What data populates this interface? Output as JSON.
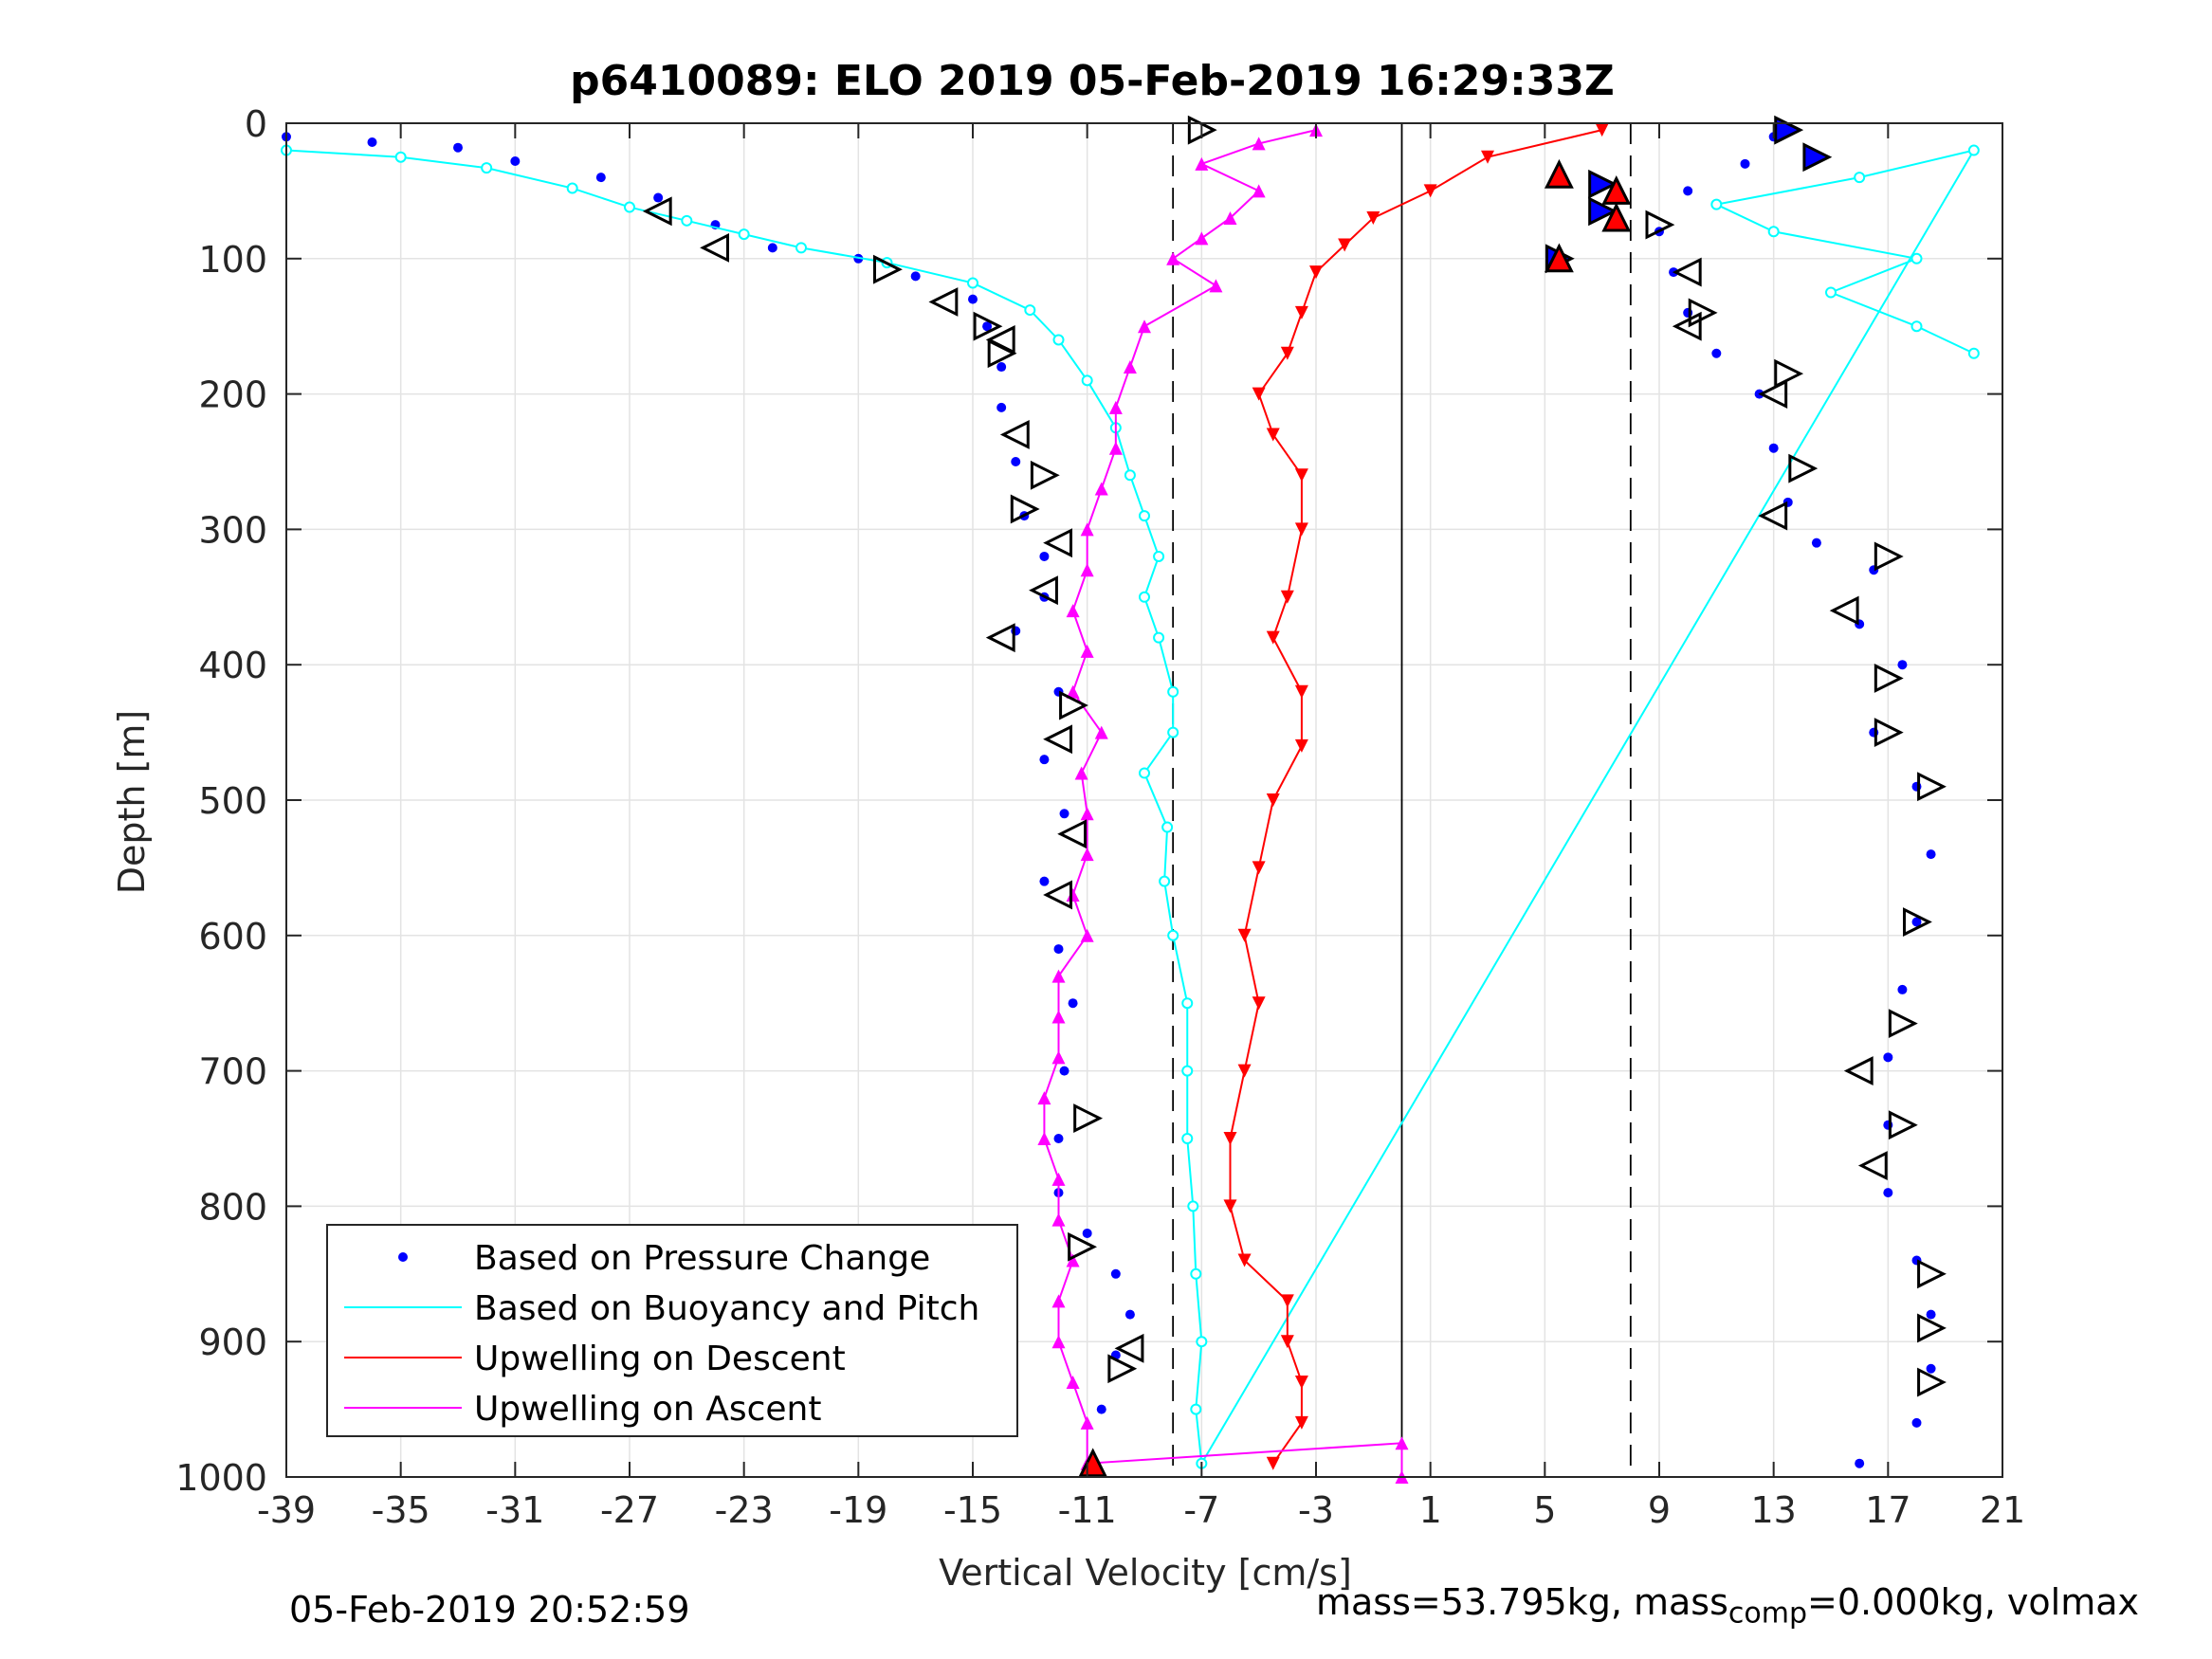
{
  "chart_data": {
    "type": "scatter",
    "title": "p6410089: ELO 2019 05-Feb-2019 16:29:33Z",
    "xlabel": "Vertical Velocity [cm/s]",
    "ylabel": "Depth [m]",
    "xlim": [
      -39,
      21
    ],
    "ylim": [
      0,
      1000
    ],
    "y_reversed": true,
    "grid": true,
    "xticks": [
      -39,
      -35,
      -31,
      -27,
      -23,
      -19,
      -15,
      -11,
      -7,
      -3,
      1,
      5,
      9,
      13,
      17,
      21
    ],
    "yticks": [
      0,
      100,
      200,
      300,
      400,
      500,
      600,
      700,
      800,
      900,
      1000
    ],
    "reference_lines": {
      "solid_x": 0,
      "dashed_x": [
        -8,
        8
      ]
    },
    "legend_position": "bottom-left",
    "colors": {
      "pressure": "#0000ff",
      "buoyancy": "#00ffff",
      "descent": "#ff0000",
      "ascent": "#ff00ff",
      "text": "#262626",
      "grid": "#e3e3e3"
    },
    "series": [
      {
        "name": "Based on Pressure Change",
        "style": "dots",
        "color": "#0000ff",
        "points": [
          [
            -39,
            10
          ],
          [
            -36,
            14
          ],
          [
            -33,
            18
          ],
          [
            -31,
            28
          ],
          [
            -28,
            40
          ],
          [
            -26,
            55
          ],
          [
            -24,
            75
          ],
          [
            -22,
            92
          ],
          [
            -19,
            100
          ],
          [
            -17,
            113
          ],
          [
            -15,
            130
          ],
          [
            -14.5,
            150
          ],
          [
            -14,
            180
          ],
          [
            -14,
            210
          ],
          [
            -13.5,
            250
          ],
          [
            -13.2,
            290
          ],
          [
            -12.5,
            320
          ],
          [
            -12.5,
            350
          ],
          [
            -13.5,
            375
          ],
          [
            -12,
            420
          ],
          [
            -12.5,
            470
          ],
          [
            -11.8,
            510
          ],
          [
            -12.5,
            560
          ],
          [
            -12,
            610
          ],
          [
            -11.5,
            650
          ],
          [
            -11.8,
            700
          ],
          [
            -12,
            750
          ],
          [
            -12,
            790
          ],
          [
            -11,
            820
          ],
          [
            -10,
            850
          ],
          [
            -9.5,
            880
          ],
          [
            -10,
            910
          ],
          [
            -10.5,
            950
          ],
          [
            -10.8,
            990
          ],
          [
            13,
            10
          ],
          [
            12,
            30
          ],
          [
            10,
            50
          ],
          [
            9,
            80
          ],
          [
            9.5,
            110
          ],
          [
            10,
            140
          ],
          [
            11,
            170
          ],
          [
            12.5,
            200
          ],
          [
            13,
            240
          ],
          [
            13.5,
            280
          ],
          [
            14.5,
            310
          ],
          [
            16.5,
            330
          ],
          [
            16,
            370
          ],
          [
            17.5,
            400
          ],
          [
            16.5,
            450
          ],
          [
            18,
            490
          ],
          [
            18.5,
            540
          ],
          [
            18,
            590
          ],
          [
            17.5,
            640
          ],
          [
            17,
            690
          ],
          [
            17,
            740
          ],
          [
            17,
            790
          ],
          [
            18,
            840
          ],
          [
            18.5,
            880
          ],
          [
            18.5,
            920
          ],
          [
            18,
            960
          ],
          [
            16,
            990
          ]
        ]
      },
      {
        "name": "Based on Buoyancy and Pitch",
        "style": "line-markers",
        "color": "#00ffff",
        "points": [
          [
            -39,
            20
          ],
          [
            -35,
            25
          ],
          [
            -32,
            33
          ],
          [
            -29,
            48
          ],
          [
            -27,
            62
          ],
          [
            -25,
            72
          ],
          [
            -23,
            82
          ],
          [
            -21,
            92
          ],
          [
            -18,
            103
          ],
          [
            -15,
            118
          ],
          [
            -13,
            138
          ],
          [
            -12,
            160
          ],
          [
            -11,
            190
          ],
          [
            -10,
            225
          ],
          [
            -9.5,
            260
          ],
          [
            -9,
            290
          ],
          [
            -8.5,
            320
          ],
          [
            -9,
            350
          ],
          [
            -8.5,
            380
          ],
          [
            -8,
            420
          ],
          [
            -8,
            450
          ],
          [
            -9,
            480
          ],
          [
            -8.2,
            520
          ],
          [
            -8.3,
            560
          ],
          [
            -8,
            600
          ],
          [
            -7.5,
            650
          ],
          [
            -7.5,
            700
          ],
          [
            -7.5,
            750
          ],
          [
            -7.3,
            800
          ],
          [
            -7.2,
            850
          ],
          [
            -7,
            900
          ],
          [
            -7.2,
            950
          ],
          [
            -7,
            990
          ],
          [
            20,
            20
          ],
          [
            16,
            40
          ],
          [
            11,
            60
          ],
          [
            13,
            80
          ],
          [
            18,
            100
          ],
          [
            15,
            125
          ],
          [
            18,
            150
          ],
          [
            20,
            170
          ]
        ]
      },
      {
        "name": "Upwelling on Descent",
        "style": "line-markers",
        "color": "#ff0000",
        "points": [
          [
            7,
            5
          ],
          [
            3,
            25
          ],
          [
            1,
            50
          ],
          [
            -1,
            70
          ],
          [
            -2,
            90
          ],
          [
            -3,
            110
          ],
          [
            -3.5,
            140
          ],
          [
            -4,
            170
          ],
          [
            -5,
            200
          ],
          [
            -4.5,
            230
          ],
          [
            -3.5,
            260
          ],
          [
            -3.5,
            300
          ],
          [
            -4,
            350
          ],
          [
            -4.5,
            380
          ],
          [
            -3.5,
            420
          ],
          [
            -3.5,
            460
          ],
          [
            -4.5,
            500
          ],
          [
            -5,
            550
          ],
          [
            -5.5,
            600
          ],
          [
            -5,
            650
          ],
          [
            -5.5,
            700
          ],
          [
            -6,
            750
          ],
          [
            -6,
            800
          ],
          [
            -5.5,
            840
          ],
          [
            -4,
            870
          ],
          [
            -4,
            900
          ],
          [
            -3.5,
            930
          ],
          [
            -3.5,
            960
          ],
          [
            -4.5,
            990
          ]
        ]
      },
      {
        "name": "Upwelling on Ascent",
        "style": "line-markers",
        "color": "#ff00ff",
        "points": [
          [
            -3,
            5
          ],
          [
            -5,
            15
          ],
          [
            -7,
            30
          ],
          [
            -5,
            50
          ],
          [
            -6,
            70
          ],
          [
            -7,
            85
          ],
          [
            -8,
            100
          ],
          [
            -6.5,
            120
          ],
          [
            -9,
            150
          ],
          [
            -9.5,
            180
          ],
          [
            -10,
            210
          ],
          [
            -10,
            240
          ],
          [
            -10.5,
            270
          ],
          [
            -11,
            300
          ],
          [
            -11,
            330
          ],
          [
            -11.5,
            360
          ],
          [
            -11,
            390
          ],
          [
            -11.5,
            420
          ],
          [
            -10.5,
            450
          ],
          [
            -11.2,
            480
          ],
          [
            -11,
            510
          ],
          [
            -11,
            540
          ],
          [
            -11.5,
            570
          ],
          [
            -11,
            600
          ],
          [
            -12,
            630
          ],
          [
            -12,
            660
          ],
          [
            -12,
            690
          ],
          [
            -12.5,
            720
          ],
          [
            -12.5,
            750
          ],
          [
            -12,
            780
          ],
          [
            -12,
            810
          ],
          [
            -11.5,
            840
          ],
          [
            -12,
            870
          ],
          [
            -12,
            900
          ],
          [
            -11.5,
            930
          ],
          [
            -11,
            960
          ],
          [
            -11,
            990
          ],
          [
            0,
            975
          ],
          [
            0,
            1000
          ]
        ]
      }
    ],
    "marker_series": [
      {
        "marker": "left-triangle",
        "points": [
          [
            -26,
            65
          ],
          [
            -24,
            92
          ],
          [
            -16,
            132
          ],
          [
            -14,
            160
          ],
          [
            -13.5,
            230
          ],
          [
            -12,
            310
          ],
          [
            -12.5,
            345
          ],
          [
            -14,
            380
          ],
          [
            -12,
            455
          ],
          [
            -11.5,
            525
          ],
          [
            -12,
            570
          ],
          [
            -9.5,
            905
          ],
          [
            10,
            110
          ],
          [
            10,
            150
          ],
          [
            13,
            200
          ],
          [
            13,
            290
          ],
          [
            15.5,
            360
          ],
          [
            16,
            700
          ],
          [
            16.5,
            770
          ]
        ]
      },
      {
        "marker": "right-triangle",
        "points": [
          [
            -7,
            5
          ],
          [
            -18,
            108
          ],
          [
            -14.5,
            150
          ],
          [
            -14,
            170
          ],
          [
            -12.5,
            260
          ],
          [
            -13.2,
            285
          ],
          [
            -11.5,
            430
          ],
          [
            -11,
            735
          ],
          [
            -11.2,
            830
          ],
          [
            -9.8,
            920
          ],
          [
            9,
            75
          ],
          [
            10.5,
            140
          ],
          [
            13.5,
            185
          ],
          [
            14,
            255
          ],
          [
            17,
            320
          ],
          [
            17,
            410
          ],
          [
            17,
            450
          ],
          [
            18.5,
            490
          ],
          [
            18,
            590
          ],
          [
            17.5,
            665
          ],
          [
            17.5,
            740
          ],
          [
            18.5,
            850
          ],
          [
            18.5,
            890
          ],
          [
            18.5,
            930
          ]
        ]
      },
      {
        "marker": "right-triangle-filled",
        "points": [
          [
            13.5,
            5
          ],
          [
            14.5,
            25
          ],
          [
            7,
            45
          ],
          [
            7,
            65
          ],
          [
            5.5,
            100
          ]
        ]
      },
      {
        "marker": "up-triangle-red",
        "points": [
          [
            5.5,
            38
          ],
          [
            7.5,
            50
          ],
          [
            7.5,
            70
          ],
          [
            5.5,
            100
          ],
          [
            -10.8,
            990
          ]
        ]
      }
    ]
  },
  "footer": {
    "timestamp": "05-Feb-2019 20:52:59",
    "mass_prefix": "mass=53.795kg, mass",
    "mass_subscript": "comp",
    "mass_suffix": "=0.000kg, volmax"
  }
}
